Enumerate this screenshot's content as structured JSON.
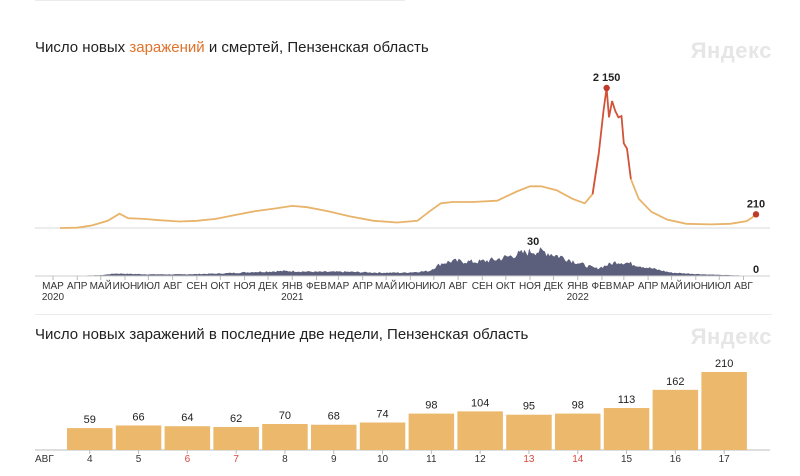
{
  "charts": {
    "top": {
      "title_part1": "Число новых ",
      "title_highlight": "заражений",
      "title_part2": " и смертей",
      "title_part3": ", Пензенская область",
      "watermark": "Яндекс"
    },
    "bottom": {
      "title": "Число новых заражений в последние две недели, Пензенская область",
      "watermark": "Яндекс"
    }
  },
  "colors": {
    "infections_line": "#e8b36a",
    "infections_peak": "#c0392b",
    "deaths_area": "#4a4e6e",
    "bar": "#ebb86c",
    "weekend_tick": "#d9453b"
  },
  "chart_data": [
    {
      "type": "line",
      "title": "Число новых заражений и смертей, Пензенская область",
      "x_range": [
        "2020-03",
        "2022-08-17"
      ],
      "month_ticks": [
        "МАР",
        "АПР",
        "МАЙ",
        "ИЮН",
        "ИЮЛ",
        "АВГ",
        "СЕН",
        "ОКТ",
        "НОЯ",
        "ДЕК",
        "ЯНВ",
        "ФЕВ",
        "МАР",
        "АПР",
        "МАЙ",
        "ИЮН",
        "ИЮЛ",
        "АВГ",
        "СЕН",
        "ОКТ",
        "НОЯ",
        "ДЕК",
        "ЯНВ",
        "ФЕВ",
        "МАР",
        "АПР",
        "МАЙ",
        "ИЮН",
        "ИЮЛ",
        "АВГ"
      ],
      "year_labels": [
        {
          "month_index": 0,
          "year": "2020"
        },
        {
          "month_index": 10,
          "year": "2021"
        },
        {
          "month_index": 22,
          "year": "2022"
        }
      ],
      "series": [
        {
          "name": "заражений",
          "unit": "cases/day",
          "points": [
            [
              "2020-03-10",
              0
            ],
            [
              "2020-04-01",
              5
            ],
            [
              "2020-04-20",
              40
            ],
            [
              "2020-05-10",
              110
            ],
            [
              "2020-05-25",
              220
            ],
            [
              "2020-06-05",
              150
            ],
            [
              "2020-06-25",
              140
            ],
            [
              "2020-07-15",
              120
            ],
            [
              "2020-08-10",
              100
            ],
            [
              "2020-09-01",
              110
            ],
            [
              "2020-09-25",
              140
            ],
            [
              "2020-10-20",
              200
            ],
            [
              "2020-11-15",
              260
            ],
            [
              "2020-12-10",
              300
            ],
            [
              "2021-01-01",
              340
            ],
            [
              "2021-01-20",
              320
            ],
            [
              "2021-02-15",
              260
            ],
            [
              "2021-03-15",
              180
            ],
            [
              "2021-04-15",
              110
            ],
            [
              "2021-05-15",
              85
            ],
            [
              "2021-06-10",
              110
            ],
            [
              "2021-06-25",
              250
            ],
            [
              "2021-07-10",
              380
            ],
            [
              "2021-07-25",
              400
            ],
            [
              "2021-08-20",
              400
            ],
            [
              "2021-09-20",
              420
            ],
            [
              "2021-10-15",
              560
            ],
            [
              "2021-11-01",
              640
            ],
            [
              "2021-11-15",
              640
            ],
            [
              "2021-12-05",
              580
            ],
            [
              "2021-12-25",
              450
            ],
            [
              "2022-01-10",
              380
            ],
            [
              "2022-01-20",
              520
            ],
            [
              "2022-01-28",
              1150
            ],
            [
              "2022-02-03",
              1800
            ],
            [
              "2022-02-07",
              2150
            ],
            [
              "2022-02-10",
              1700
            ],
            [
              "2022-02-14",
              1950
            ],
            [
              "2022-02-18",
              1800
            ],
            [
              "2022-02-22",
              1700
            ],
            [
              "2022-02-26",
              1720
            ],
            [
              "2022-03-01",
              1300
            ],
            [
              "2022-03-05",
              1220
            ],
            [
              "2022-03-10",
              750
            ],
            [
              "2022-03-20",
              450
            ],
            [
              "2022-04-05",
              250
            ],
            [
              "2022-04-25",
              130
            ],
            [
              "2022-05-20",
              65
            ],
            [
              "2022-06-20",
              55
            ],
            [
              "2022-07-15",
              65
            ],
            [
              "2022-08-05",
              105
            ],
            [
              "2022-08-12",
              160
            ],
            [
              "2022-08-17",
              210
            ]
          ],
          "peak_label": "2 150",
          "last_label": "210"
        },
        {
          "name": "смертей",
          "unit": "deaths/day",
          "points": [
            [
              "2020-03-10",
              0
            ],
            [
              "2020-05-01",
              1
            ],
            [
              "2020-05-20",
              3
            ],
            [
              "2020-07-01",
              2
            ],
            [
              "2020-08-15",
              2
            ],
            [
              "2020-10-01",
              3
            ],
            [
              "2020-11-15",
              5
            ],
            [
              "2020-12-25",
              6
            ],
            [
              "2021-02-01",
              5
            ],
            [
              "2021-03-15",
              5
            ],
            [
              "2021-04-20",
              4
            ],
            [
              "2021-05-25",
              4
            ],
            [
              "2021-06-25",
              6
            ],
            [
              "2021-07-10",
              15
            ],
            [
              "2021-07-25",
              18
            ],
            [
              "2021-08-25",
              17
            ],
            [
              "2021-09-20",
              20
            ],
            [
              "2021-10-20",
              27
            ],
            [
              "2021-11-05",
              30
            ],
            [
              "2021-11-20",
              29
            ],
            [
              "2021-12-15",
              22
            ],
            [
              "2022-01-10",
              13
            ],
            [
              "2022-01-25",
              9
            ],
            [
              "2022-02-20",
              17
            ],
            [
              "2022-03-05",
              16
            ],
            [
              "2022-04-01",
              10
            ],
            [
              "2022-05-01",
              4
            ],
            [
              "2022-06-10",
              2
            ],
            [
              "2022-07-15",
              1
            ],
            [
              "2022-08-17",
              0
            ]
          ],
          "peak_label": "30",
          "last_label": "0"
        }
      ]
    },
    {
      "type": "bar",
      "title": "Число новых заражений в последние две недели, Пензенская область",
      "month_label": "АВГ",
      "categories": [
        "4",
        "5",
        "6",
        "7",
        "8",
        "9",
        "10",
        "11",
        "12",
        "13",
        "14",
        "15",
        "16",
        "17"
      ],
      "values": [
        59,
        66,
        64,
        62,
        70,
        68,
        74,
        98,
        104,
        95,
        98,
        113,
        162,
        210
      ],
      "weekend": [
        false,
        false,
        true,
        true,
        false,
        false,
        false,
        false,
        false,
        true,
        true,
        false,
        false,
        false
      ],
      "ylim": [
        0,
        210
      ]
    }
  ]
}
